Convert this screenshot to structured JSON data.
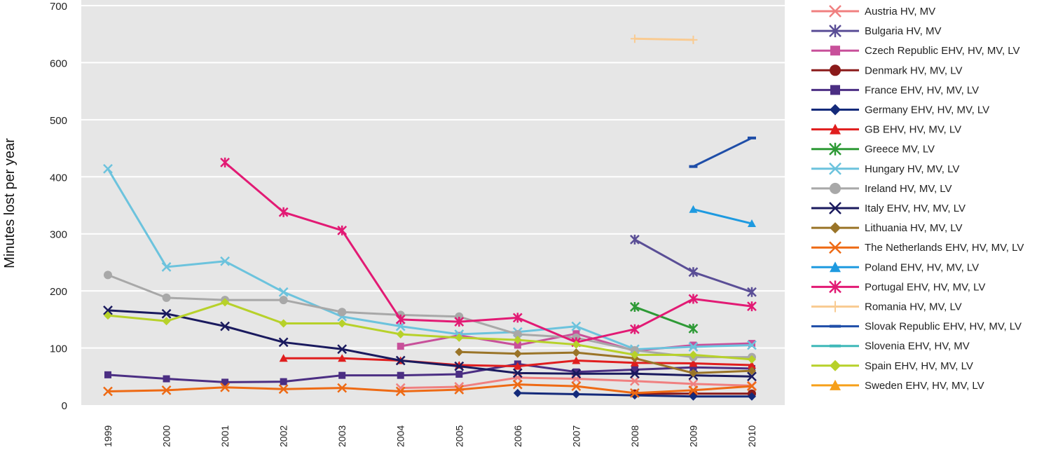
{
  "chart_data": {
    "type": "line",
    "ylabel": "Minutes lost per year",
    "ylim": [
      0,
      700
    ],
    "yticks": [
      "0",
      "100",
      "200",
      "300",
      "400",
      "500",
      "600",
      "700"
    ],
    "categories": [
      "1999",
      "2000",
      "2001",
      "2002",
      "2003",
      "2004",
      "2005",
      "2006",
      "2007",
      "2008",
      "2009",
      "2010"
    ],
    "grid": true,
    "legend_position": "right",
    "series": [
      {
        "name": "Austria HV, MV",
        "color": "#f08080",
        "marker": "x",
        "values": [
          null,
          null,
          null,
          null,
          null,
          30,
          32,
          48,
          46,
          42,
          37,
          34
        ]
      },
      {
        "name": "Bulgaria HV, MV",
        "color": "#5a4e96",
        "marker": "asterisk",
        "values": [
          null,
          null,
          null,
          null,
          null,
          null,
          null,
          null,
          null,
          290,
          233,
          198
        ]
      },
      {
        "name": "Czech Republic EHV, HV, MV, LV",
        "color": "#c8509a",
        "marker": "square",
        "values": [
          null,
          null,
          null,
          null,
          null,
          103,
          122,
          105,
          125,
          95,
          105,
          108
        ]
      },
      {
        "name": "Denmark HV, MV, LV",
        "color": "#8b1a1a",
        "marker": "circle",
        "values": [
          null,
          null,
          null,
          null,
          null,
          null,
          null,
          null,
          null,
          20,
          20,
          20
        ]
      },
      {
        "name": "France EHV, HV, MV, LV",
        "color": "#4b2e83",
        "marker": "square",
        "values": [
          53,
          46,
          40,
          41,
          52,
          52,
          54,
          72,
          58,
          62,
          66,
          64
        ]
      },
      {
        "name": "Germany EHV, HV, MV, LV",
        "color": "#142a7a",
        "marker": "diamond",
        "values": [
          null,
          null,
          null,
          null,
          null,
          null,
          null,
          21,
          19,
          17,
          15,
          15
        ]
      },
      {
        "name": "GB EHV, HV, MV, LV",
        "color": "#e01e1e",
        "marker": "triangle",
        "values": [
          null,
          null,
          null,
          82,
          82,
          78,
          70,
          68,
          78,
          74,
          73,
          70
        ]
      },
      {
        "name": "Greece MV, LV",
        "color": "#2e9a36",
        "marker": "asterisk",
        "values": [
          null,
          null,
          null,
          null,
          null,
          null,
          null,
          null,
          null,
          172,
          134,
          null
        ]
      },
      {
        "name": "Hungary HV, MV, LV",
        "color": "#6cc3dd",
        "marker": "x",
        "values": [
          414,
          242,
          252,
          198,
          155,
          138,
          124,
          128,
          138,
          98,
          102,
          105
        ]
      },
      {
        "name": "Ireland HV, MV, LV",
        "color": "#a8a8a8",
        "marker": "circle",
        "values": [
          228,
          188,
          184,
          184,
          163,
          158,
          155,
          124,
          118,
          96,
          84,
          84
        ]
      },
      {
        "name": "Italy EHV, HV, MV, LV",
        "color": "#1a1a5e",
        "marker": "x",
        "values": [
          166,
          160,
          138,
          110,
          98,
          78,
          68,
          56,
          55,
          55,
          52,
          50
        ]
      },
      {
        "name": "Lithuania HV, MV, LV",
        "color": "#9a7428",
        "marker": "diamond",
        "values": [
          null,
          null,
          null,
          null,
          null,
          null,
          93,
          90,
          92,
          82,
          56,
          60
        ]
      },
      {
        "name": "The Netherlands EHV, HV, MV, LV",
        "color": "#ee6a14",
        "marker": "x",
        "values": [
          24,
          26,
          31,
          28,
          30,
          24,
          27,
          36,
          33,
          21,
          26,
          33
        ]
      },
      {
        "name": "Poland EHV, HV, MV, LV",
        "color": "#1e9ae0",
        "marker": "triangle",
        "values": [
          null,
          null,
          null,
          null,
          null,
          null,
          null,
          null,
          null,
          null,
          343,
          318
        ]
      },
      {
        "name": "Portugal EHV, HV, MV, LV",
        "color": "#e21a74",
        "marker": "asterisk",
        "values": [
          null,
          null,
          425,
          338,
          306,
          150,
          146,
          153,
          110,
          133,
          186,
          173
        ]
      },
      {
        "name": "Romania HV, MV, LV",
        "color": "#f9cb92",
        "marker": "plus",
        "values": [
          null,
          null,
          null,
          null,
          null,
          null,
          null,
          null,
          null,
          642,
          640,
          null
        ]
      },
      {
        "name": "Slovak Republic EHV, HV, MV, LV",
        "color": "#1f4ea8",
        "marker": "dash",
        "values": [
          null,
          null,
          null,
          null,
          null,
          null,
          null,
          null,
          null,
          null,
          418,
          468
        ]
      },
      {
        "name": "Slovenia  EHV, HV, MV",
        "color": "#3fb8b8",
        "marker": "dash",
        "values": [
          null,
          null,
          null,
          null,
          null,
          null,
          null,
          null,
          null,
          null,
          null,
          null
        ]
      },
      {
        "name": "Spain EHV, HV, MV, LV",
        "color": "#b7d12a",
        "marker": "diamond",
        "values": [
          157,
          147,
          180,
          143,
          143,
          124,
          118,
          114,
          106,
          88,
          88,
          80
        ]
      },
      {
        "name": "Sweden EHV, HV, MV, LV",
        "color": "#f6a01a",
        "marker": "triangle",
        "values": [
          null,
          null,
          null,
          null,
          null,
          null,
          null,
          null,
          null,
          null,
          null,
          null
        ]
      }
    ]
  }
}
